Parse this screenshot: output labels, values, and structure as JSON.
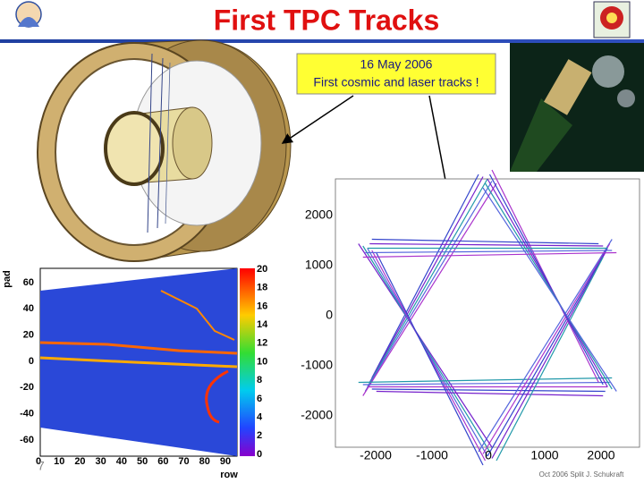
{
  "title": "First TPC Tracks",
  "callout": {
    "date": "16 May 2006",
    "text": "First cosmic and laser tracks !"
  },
  "pad_row_plot": {
    "y_label": "pad",
    "x_label": "row",
    "yticks": [
      60,
      40,
      20,
      0,
      -20,
      -40,
      -60
    ],
    "xticks": [
      0,
      10,
      20,
      30,
      40,
      50,
      60,
      70,
      80,
      90
    ],
    "colorbar_ticks": [
      20,
      18,
      16,
      14,
      12,
      10,
      8,
      6,
      4,
      2,
      0
    ]
  },
  "xy_plot": {
    "yticks": [
      2000,
      1000,
      0,
      -1000,
      -2000
    ],
    "xticks": [
      -2000,
      -1000,
      0,
      1000,
      2000
    ]
  },
  "footer": "Oct 2006 Split J. Schukraft",
  "page_number": "7"
}
